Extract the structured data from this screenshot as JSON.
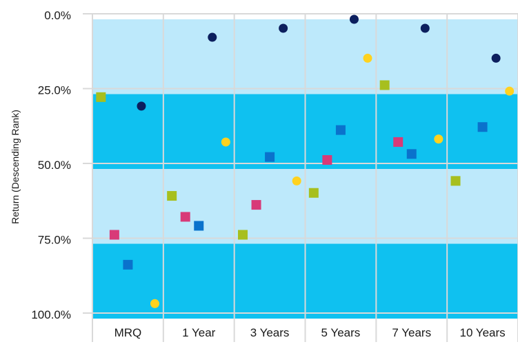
{
  "chart_data": {
    "type": "scatter",
    "title": "",
    "xlabel": "",
    "ylabel": "Return (Descending Rank)",
    "categories": [
      "MRQ",
      "1 Year",
      "3 Years",
      "5 Years",
      "7 Years",
      "10 Years"
    ],
    "y_ticks": [
      "0.0%",
      "25.0%",
      "50.0%",
      "75.0%",
      "100.0%"
    ],
    "ylim": [
      0,
      100
    ],
    "y_inverted": true,
    "grid": true,
    "quartile_bands": [
      {
        "from": 0,
        "to": 25,
        "color": "#bde9fb"
      },
      {
        "from": 25,
        "to": 50,
        "color": "#0fc1f0"
      },
      {
        "from": 50,
        "to": 75,
        "color": "#bde9fb"
      },
      {
        "from": 75,
        "to": 100,
        "color": "#0fc1f0"
      }
    ],
    "series": [
      {
        "marker": "square",
        "color": "#a7bf1e",
        "values": [
          26,
          59,
          72,
          58,
          22,
          54
        ]
      },
      {
        "marker": "square",
        "color": "#d83a78",
        "values": [
          72,
          66,
          62,
          47,
          41,
          null
        ]
      },
      {
        "marker": "square",
        "color": "#0a72cc",
        "values": [
          82,
          69,
          46,
          37,
          45,
          36
        ]
      },
      {
        "marker": "circle",
        "color": "#0c1f5e",
        "values": [
          29,
          6,
          3,
          0,
          3,
          13
        ]
      },
      {
        "marker": "circle",
        "color": "#ffd21f",
        "values": [
          95,
          41,
          54,
          13,
          40,
          24
        ]
      }
    ]
  }
}
